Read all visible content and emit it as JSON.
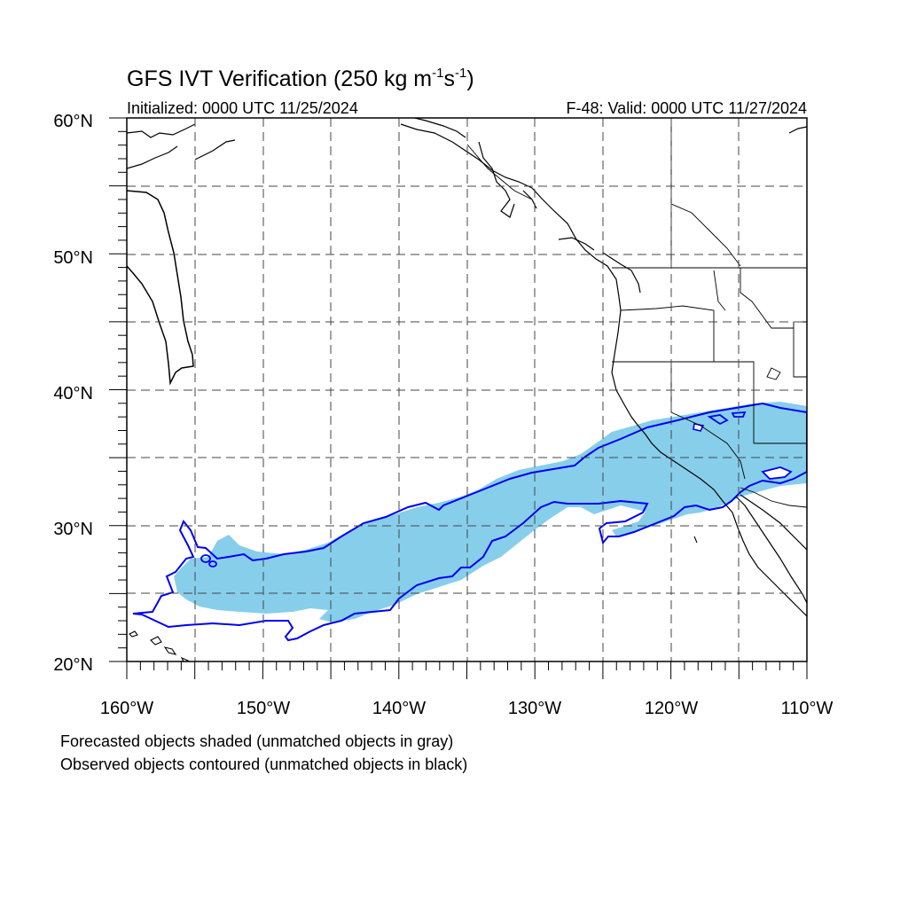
{
  "header": {
    "title_main": "GFS IVT Verification (250 kg m",
    "title_exp1": "-1",
    "title_mid": "s",
    "title_exp2": "-1",
    "title_end": ")",
    "initialized": "Initialized: 0000 UTC 11/25/2024",
    "valid": "F-48: Valid: 0000 UTC 11/27/2024"
  },
  "map": {
    "lon_range": [
      -160,
      -110
    ],
    "lat_range": [
      20,
      60
    ],
    "projection": "cylindrical equidistant",
    "grid_spacing_deg": 5,
    "grid_style": "dashed",
    "lat_labels": [
      "20°N",
      "30°N",
      "40°N",
      "50°N",
      "60°N"
    ],
    "lon_labels": [
      "160°W",
      "150°W",
      "140°W",
      "130°W",
      "120°W",
      "110°W"
    ]
  },
  "legend_notes": [
    "Forecasted objects shaded (unmatched objects in gray)",
    "Observed objects contoured (unmatched objects in black)"
  ],
  "colors": {
    "forecast_fill": "#87ceeb",
    "observed_contour": "#0000ee",
    "coastline": "#000000",
    "grid": "#555555"
  },
  "objects": {
    "forecast_shaded": "matched forecast IVT object (light blue)",
    "observed_contour": "matched observed IVT object (blue outline)"
  }
}
